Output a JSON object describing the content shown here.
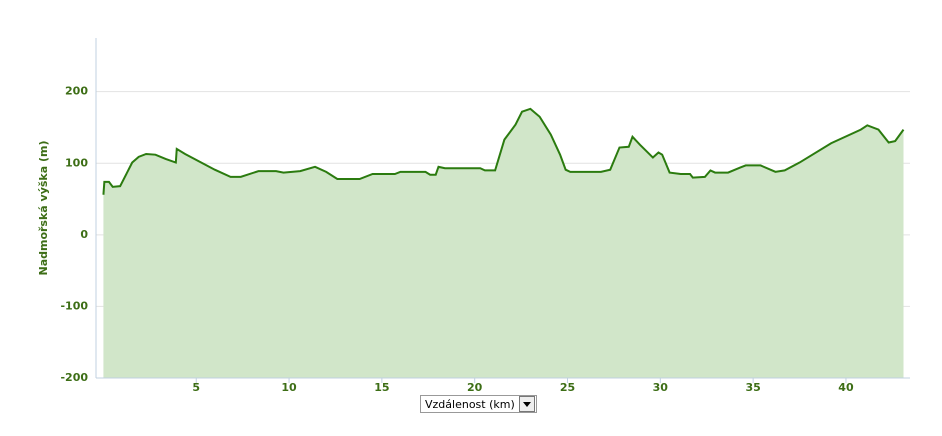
{
  "chart_data": {
    "type": "area",
    "y_label": "Nadmořská výška (m)",
    "x_label": "Vzdálenost (km)",
    "color": "#2b7b0f",
    "fill": "#d1e6c9",
    "grid": true,
    "xlim": [
      -0.4,
      43.45
    ],
    "ylim": [
      -200,
      275
    ],
    "xticks": [
      5,
      10,
      15,
      20,
      25,
      30,
      35,
      40
    ],
    "yticks": [
      -200,
      -100,
      0,
      100,
      200
    ],
    "x": [
      0,
      0.05,
      0.3,
      0.5,
      0.9,
      1.55,
      1.9,
      2.3,
      2.8,
      3.35,
      3.9,
      3.95,
      4.4,
      5.2,
      6.0,
      6.85,
      7.4,
      8.35,
      9.3,
      9.7,
      10.6,
      11.4,
      12.0,
      12.6,
      13.8,
      14.5,
      15.7,
      16.0,
      17.35,
      17.6,
      17.9,
      18.05,
      18.4,
      20.3,
      20.55,
      21.1,
      21.6,
      22.2,
      22.55,
      23.0,
      23.5,
      24.1,
      24.6,
      24.9,
      25.15,
      26.8,
      27.3,
      27.8,
      28.3,
      28.5,
      28.9,
      29.6,
      29.9,
      30.1,
      30.5,
      31.1,
      31.6,
      31.75,
      32.4,
      32.7,
      32.95,
      33.65,
      34.3,
      34.6,
      35.4,
      36.2,
      36.7,
      37.5,
      39.2,
      40.8,
      41.15,
      41.75,
      42.3,
      42.65,
      43.1
    ],
    "values": [
      56,
      74,
      74,
      67,
      68,
      101,
      109,
      113,
      112,
      106,
      101,
      120,
      113,
      102,
      91,
      81,
      81,
      89,
      89,
      87,
      89,
      95,
      88,
      78,
      78,
      85,
      85,
      88,
      88,
      84,
      84,
      95,
      93,
      93,
      90,
      90,
      133,
      154,
      172,
      176,
      165,
      140,
      112,
      91,
      88,
      88,
      91,
      122,
      123,
      137,
      126,
      108,
      115,
      112,
      87,
      85,
      85,
      80,
      81,
      90,
      87,
      87,
      94,
      97,
      97,
      88,
      90,
      101,
      128,
      147,
      153,
      147,
      129,
      131,
      147
    ]
  }
}
